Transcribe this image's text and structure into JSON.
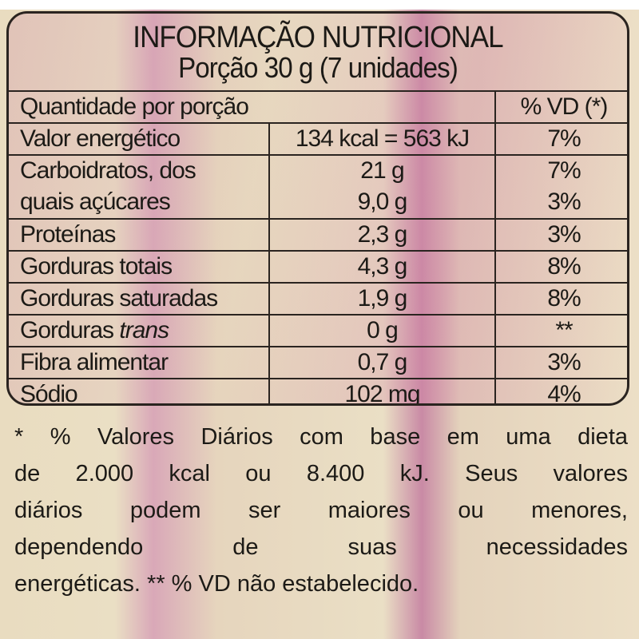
{
  "label": {
    "title": "INFORMAÇÃO NUTRICIONAL",
    "serving": "Porção 30 g (7 unidades)",
    "header": {
      "quantity": "Quantidade por porção",
      "dv": "% VD (*)"
    },
    "rows": [
      {
        "name": "Valor energético",
        "amount": "134 kcal = 563 kJ",
        "dv": "7%"
      },
      {
        "name": "Carboidratos, dos",
        "amount": "21 g",
        "dv": "7%"
      },
      {
        "name": "quais açúcares",
        "amount": "9,0 g",
        "dv": "3%"
      },
      {
        "name": "Proteínas",
        "amount": "2,3 g",
        "dv": "3%"
      },
      {
        "name": "Gorduras totais",
        "amount": "4,3 g",
        "dv": "8%"
      },
      {
        "name": "Gorduras saturadas",
        "amount": "1,9 g",
        "dv": "8%"
      },
      {
        "name_prefix": "Gorduras ",
        "name_italic": "trans",
        "amount": "0 g",
        "dv": "**"
      },
      {
        "name": "Fibra alimentar",
        "amount": "0,7 g",
        "dv": "3%"
      },
      {
        "name": "Sódio",
        "amount": "102 mg",
        "dv": "4%"
      }
    ],
    "footnote_lines": [
      "* % Valores Diários com base em uma dieta",
      "de 2.000 kcal ou 8.400 kJ. Seus valores",
      "diários podem ser maiores ou menores,",
      "dependendo de suas necessidades",
      "energéticas. ** % VD não estabelecido."
    ]
  }
}
